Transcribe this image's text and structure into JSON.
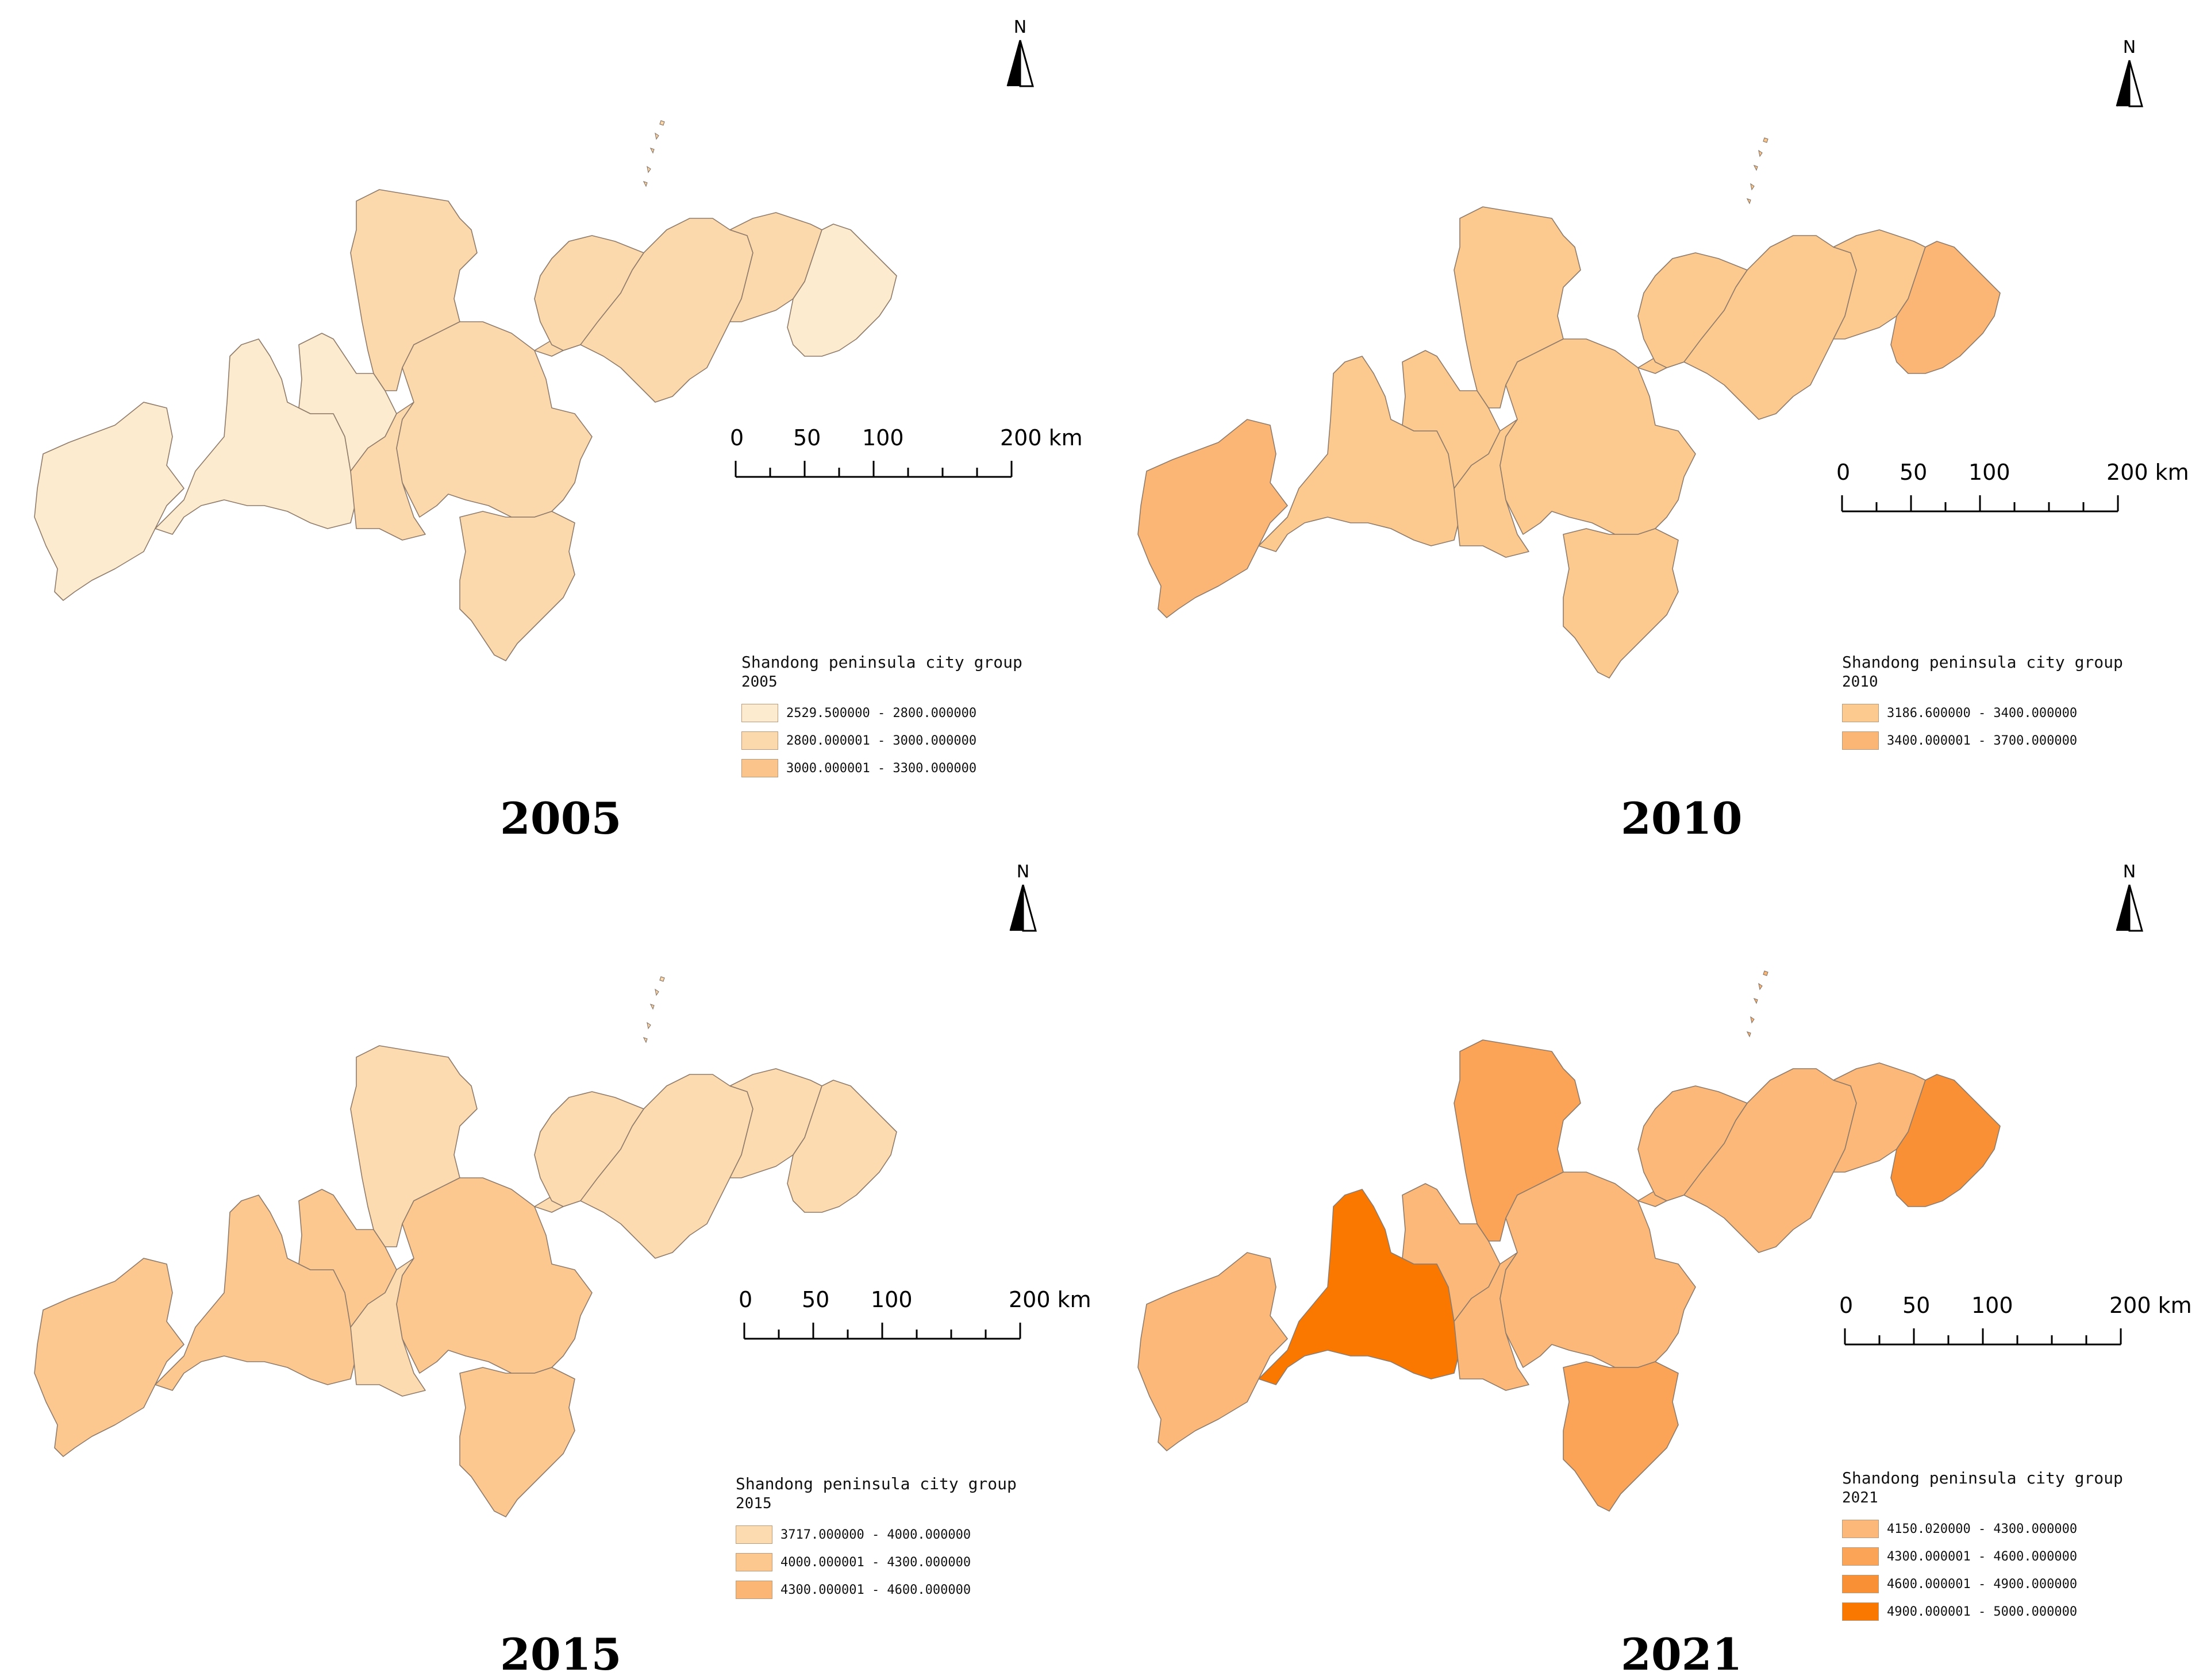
{
  "panels": [
    {
      "year": "2005",
      "legend": {
        "title": "Shandong peninsula city group",
        "subtitle": "2005",
        "classes": [
          {
            "label": "2529.500000 - 2800.000000",
            "color": "#fdebcf"
          },
          {
            "label": "2800.000001 - 3000.000000",
            "color": "#fcd9ac"
          },
          {
            "label": "3000.000001 - 3300.000000",
            "color": "#fbc48a"
          }
        ]
      },
      "scale": {
        "labels": [
          "0",
          "50",
          "100",
          "200 km"
        ]
      },
      "north": "N",
      "region_colors": {
        "west": "#fdebcf",
        "liaocheng": "#fdebcf",
        "dezhou": "#fdebcf",
        "tai": "#fcd9ac",
        "jinan": "#fcd9ac",
        "zibo": "#fcd9ac",
        "linyi": "#fcd9ac",
        "weifang": "#fcd9ac",
        "yantai": "#fcd9ac",
        "weihai": "#fdebcf",
        "rizhao": "#fcd9ac"
      }
    },
    {
      "year": "2010",
      "legend": {
        "title": "Shandong peninsula city group",
        "subtitle": "2010",
        "classes": [
          {
            "label": "3186.600000 - 3400.000000",
            "color": "#fcc98f"
          },
          {
            "label": "3400.000001 - 3700.000000",
            "color": "#fbb574"
          }
        ]
      },
      "scale": {
        "labels": [
          "0",
          "50",
          "100",
          "200 km"
        ]
      },
      "north": "N",
      "region_colors": {
        "west": "#fbb574",
        "liaocheng": "#fcc98f",
        "dezhou": "#fcc98f",
        "tai": "#fcc98f",
        "jinan": "#fcc98f",
        "zibo": "#fcc98f",
        "linyi": "#fcc98f",
        "weifang": "#fcc98f",
        "yantai": "#fcc98f",
        "weihai": "#fbb574",
        "rizhao": "#fcc98f"
      }
    },
    {
      "year": "2015",
      "legend": {
        "title": "Shandong peninsula city group",
        "subtitle": "2015",
        "classes": [
          {
            "label": "3717.000000 - 4000.000000",
            "color": "#fddbb0"
          },
          {
            "label": "4000.000001 - 4300.000000",
            "color": "#fcc88f"
          },
          {
            "label": "4300.000001 - 4600.000000",
            "color": "#fbb574"
          }
        ]
      },
      "scale": {
        "labels": [
          "0",
          "50",
          "100",
          "200 km"
        ]
      },
      "north": "N",
      "region_colors": {
        "west": "#fcc88f",
        "liaocheng": "#fcc88f",
        "dezhou": "#fcc88f",
        "tai": "#fddbb0",
        "jinan": "#fddbb0",
        "zibo": "#fcc88f",
        "linyi": "#fcc88f",
        "weifang": "#fddbb0",
        "yantai": "#fddbb0",
        "weihai": "#fddbb0",
        "rizhao": "#fddbb0"
      }
    },
    {
      "year": "2021",
      "legend": {
        "title": "Shandong peninsula city group",
        "subtitle": "2021",
        "classes": [
          {
            "label": "4150.020000 - 4300.000000",
            "color": "#fbb878"
          },
          {
            "label": "4300.000001 - 4600.000000",
            "color": "#fba356"
          },
          {
            "label": "4600.000001 - 4900.000000",
            "color": "#fa9035"
          },
          {
            "label": "4900.000001 - 5000.000000",
            "color": "#fa7800"
          }
        ]
      },
      "scale": {
        "labels": [
          "0",
          "50",
          "100",
          "200 km"
        ]
      },
      "north": "N",
      "region_colors": {
        "west": "#fbb878",
        "liaocheng": "#fa7800",
        "dezhou": "#fbb878",
        "tai": "#fbb878",
        "jinan": "#fba356",
        "zibo": "#fbb878",
        "linyi": "#fba356",
        "weifang": "#fbb878",
        "yantai": "#fbb878",
        "weihai": "#fa9035",
        "rizhao": "#fbb878"
      }
    }
  ]
}
